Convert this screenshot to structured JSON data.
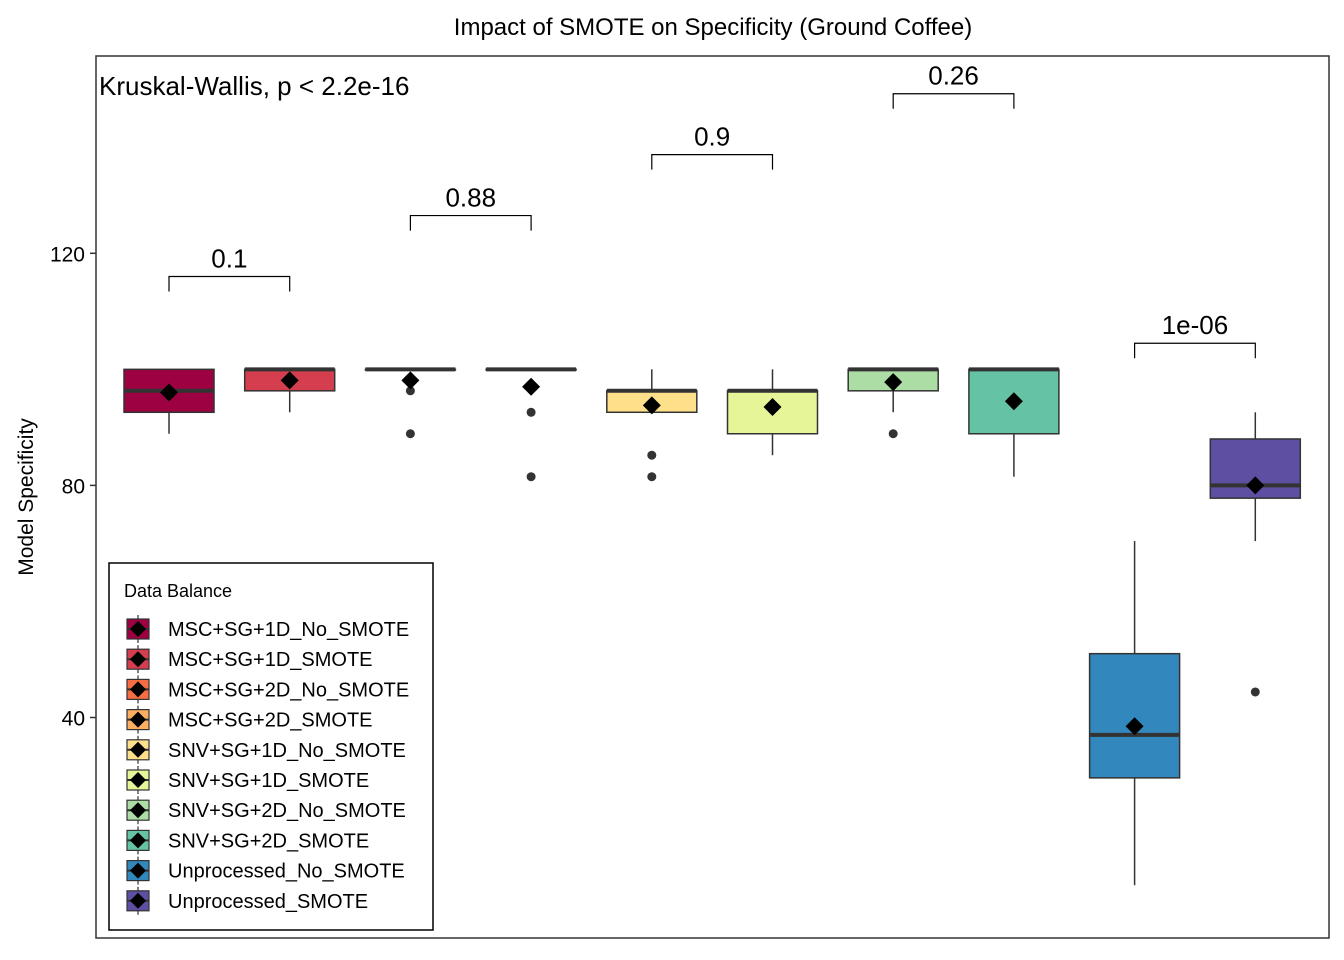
{
  "chart_data": {
    "type": "box",
    "title": "Impact of SMOTE on Specificity (Ground Coffee)",
    "ylabel": "Model Specificity",
    "xlabel": "",
    "ylim": [
      2,
      154
    ],
    "yticks": [
      40,
      80,
      120
    ],
    "annotation": "Kruskal-Wallis, p < 2.2e-16",
    "legend": {
      "title": "Data Balance",
      "position": "bottom-left"
    },
    "groups": [
      {
        "name": "MSC+SG+1D_No_SMOTE",
        "color": "#9E0142",
        "q1": 92.6,
        "median": 96.3,
        "q3": 100,
        "whisker_low": 88.9,
        "whisker_high": 100,
        "mean": 96.0,
        "outliers": []
      },
      {
        "name": "MSC+SG+1D_SMOTE",
        "color": "#D53E4F",
        "q1": 96.3,
        "median": 100,
        "q3": 100,
        "whisker_low": 92.6,
        "whisker_high": 100,
        "mean": 98.1,
        "outliers": []
      },
      {
        "name": "MSC+SG+2D_No_SMOTE",
        "color": "#F46D43",
        "q1": 100,
        "median": 100,
        "q3": 100,
        "whisker_low": 100,
        "whisker_high": 100,
        "mean": 98.1,
        "outliers": [
          96.3,
          88.9
        ]
      },
      {
        "name": "MSC+SG+2D_SMOTE",
        "color": "#FDAE61",
        "q1": 100,
        "median": 100,
        "q3": 100,
        "whisker_low": 100,
        "whisker_high": 100,
        "mean": 97.0,
        "outliers": [
          92.6,
          81.5
        ]
      },
      {
        "name": "SNV+SG+1D_No_SMOTE",
        "color": "#FEE08B",
        "q1": 92.6,
        "median": 96.3,
        "q3": 96.3,
        "whisker_low": 92.6,
        "whisker_high": 100,
        "mean": 93.8,
        "outliers": [
          85.2,
          81.5
        ]
      },
      {
        "name": "SNV+SG+1D_SMOTE",
        "color": "#E6F598",
        "q1": 88.9,
        "median": 96.3,
        "q3": 96.3,
        "whisker_low": 85.2,
        "whisker_high": 100,
        "mean": 93.5,
        "outliers": []
      },
      {
        "name": "SNV+SG+2D_No_SMOTE",
        "color": "#ABDDA4",
        "q1": 96.3,
        "median": 100,
        "q3": 100,
        "whisker_low": 92.6,
        "whisker_high": 100,
        "mean": 97.8,
        "outliers": [
          88.9
        ]
      },
      {
        "name": "SNV+SG+2D_SMOTE",
        "color": "#66C2A5",
        "q1": 88.9,
        "median": 100,
        "q3": 100,
        "whisker_low": 81.5,
        "whisker_high": 100,
        "mean": 94.5,
        "outliers": []
      },
      {
        "name": "Unprocessed_No_SMOTE",
        "color": "#3288BD",
        "q1": 29.6,
        "median": 37.0,
        "q3": 51.0,
        "whisker_low": 11.1,
        "whisker_high": 70.4,
        "mean": 38.5,
        "outliers": []
      },
      {
        "name": "Unprocessed_SMOTE",
        "color": "#5E4FA2",
        "q1": 77.8,
        "median": 80.0,
        "q3": 88.0,
        "whisker_low": 70.4,
        "whisker_high": 92.6,
        "mean": 80.0,
        "outliers": [
          44.4
        ]
      }
    ],
    "comparisons": [
      {
        "pair": [
          0,
          1
        ],
        "label": "0.1",
        "y": 116
      },
      {
        "pair": [
          2,
          3
        ],
        "label": "0.88",
        "y": 126.5
      },
      {
        "pair": [
          4,
          5
        ],
        "label": "0.9",
        "y": 137
      },
      {
        "pair": [
          6,
          7
        ],
        "label": "0.26",
        "y": 147.5
      },
      {
        "pair": [
          8,
          9
        ],
        "label": "1e-06",
        "y": 104.5
      }
    ]
  }
}
